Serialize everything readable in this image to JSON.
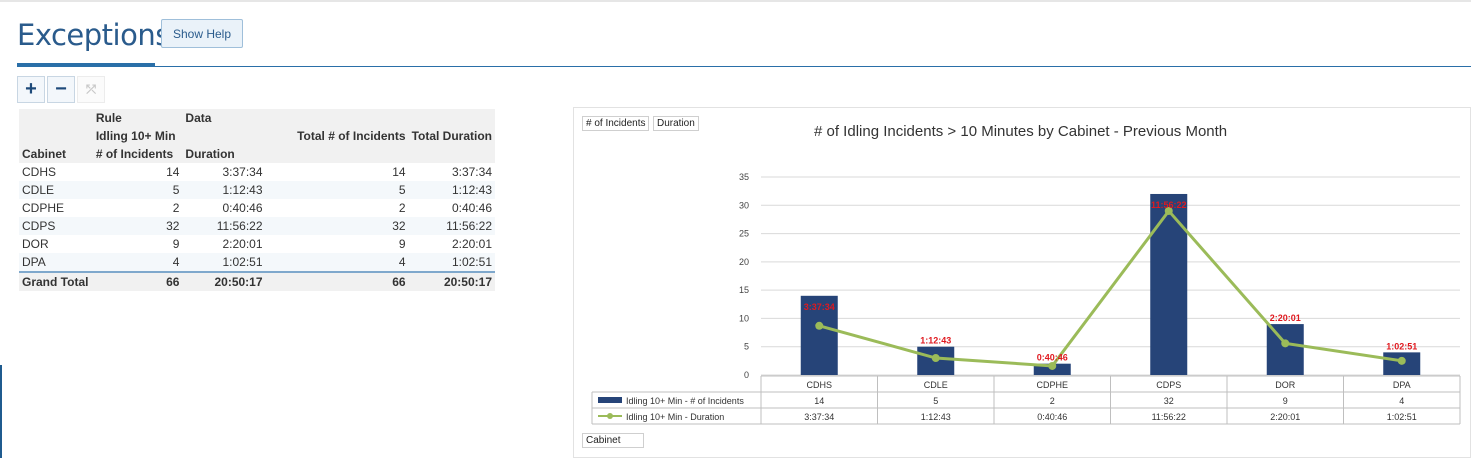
{
  "page": {
    "title": "Exceptions",
    "help_button": "Show Help"
  },
  "toolbar": {
    "expand_symbol": "+",
    "collapse_symbol": "−",
    "reset_symbol": "⤱"
  },
  "pivot": {
    "header_rule": "Rule",
    "header_data": "Data",
    "header_idling": "Idling 10+ Min",
    "header_cabinet": "Cabinet",
    "header_incidents": "# of Incidents",
    "header_duration": "Duration",
    "header_total_incidents": "Total # of Incidents",
    "header_total_duration": "Total Duration",
    "rows": [
      {
        "cabinet": "CDHS",
        "incidents": "14",
        "duration": "3:37:34",
        "total_incidents": "14",
        "total_duration": "3:37:34"
      },
      {
        "cabinet": "CDLE",
        "incidents": "5",
        "duration": "1:12:43",
        "total_incidents": "5",
        "total_duration": "1:12:43"
      },
      {
        "cabinet": "CDPHE",
        "incidents": "2",
        "duration": "0:40:46",
        "total_incidents": "2",
        "total_duration": "0:40:46"
      },
      {
        "cabinet": "CDPS",
        "incidents": "32",
        "duration": "11:56:22",
        "total_incidents": "32",
        "total_duration": "11:56:22"
      },
      {
        "cabinet": "DOR",
        "incidents": "9",
        "duration": "2:20:01",
        "total_incidents": "9",
        "total_duration": "2:20:01"
      },
      {
        "cabinet": "DPA",
        "incidents": "4",
        "duration": "1:02:51",
        "total_incidents": "4",
        "total_duration": "1:02:51"
      }
    ],
    "grand_total": {
      "label": "Grand Total",
      "incidents": "66",
      "duration": "20:50:17",
      "total_incidents": "66",
      "total_duration": "20:50:17"
    }
  },
  "chart_fields": {
    "incidents_field": "# of Incidents",
    "duration_field": "Duration",
    "axis_field": "Cabinet"
  },
  "colors": {
    "bar": "#264478",
    "line": "#9bbb59",
    "label": "#e0191f"
  },
  "chart_data": {
    "type": "bar",
    "title": "# of Idling Incidents > 10 Minutes by Cabinet - Previous Month",
    "categories": [
      "CDHS",
      "CDLE",
      "CDPHE",
      "CDPS",
      "DOR",
      "DPA"
    ],
    "ylim": [
      0,
      35
    ],
    "yticks": [
      "0",
      "5",
      "10",
      "15",
      "20",
      "25",
      "30",
      "35"
    ],
    "series": [
      {
        "name": "Idling 10+ Min - # of Incidents",
        "kind": "bar",
        "values": [
          14,
          5,
          2,
          32,
          9,
          4
        ],
        "labels": [
          "14",
          "5",
          "2",
          "32",
          "9",
          "4"
        ]
      },
      {
        "name": "Idling 10+ Min - Duration",
        "kind": "line",
        "values": [
          8.7,
          3.0,
          1.6,
          29.0,
          5.6,
          2.5
        ],
        "labels": [
          "3:37:34",
          "1:12:43",
          "0:40:46",
          "11:56:22",
          "2:20:01",
          "1:02:51"
        ]
      }
    ]
  }
}
